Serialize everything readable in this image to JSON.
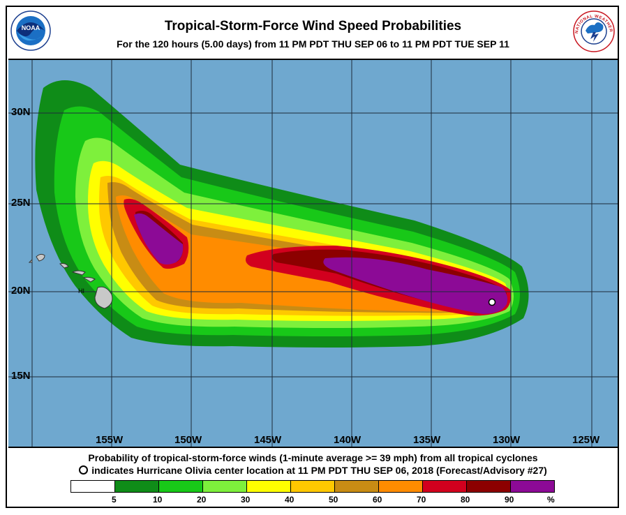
{
  "title": "Tropical-Storm-Force Wind Speed Probabilities",
  "subtitle": "For the 120 hours (5.00 days) from 11 PM PDT THU SEP 06 to 11 PM PDT TUE SEP 11",
  "logos": {
    "left": "NOAA",
    "right": "NATIONAL WEATHER SERVICE"
  },
  "map": {
    "ocean_color": "#6fa8cf",
    "lat_labels": [
      "30N",
      "25N",
      "20N",
      "15N"
    ],
    "lon_labels": [
      "155W",
      "150W",
      "145W",
      "140W",
      "135W",
      "130W",
      "125W"
    ],
    "place_label": "HI"
  },
  "caption": {
    "line1": "Probability of tropical-storm-force winds (1-minute average >= 39 mph) from all tropical cyclones",
    "line2": "indicates Hurricane Olivia center location at 11 PM PDT THU SEP 06, 2018 (Forecast/Advisory #27)"
  },
  "legend": {
    "colors": [
      "#ffffff",
      "#0f8c18",
      "#18c818",
      "#7ef03c",
      "#ffff00",
      "#ffc800",
      "#c88c14",
      "#ff8c00",
      "#d2001e",
      "#8c0000",
      "#8c0a96"
    ],
    "labels": [
      "5",
      "10",
      "20",
      "30",
      "40",
      "50",
      "60",
      "70",
      "80",
      "90",
      "%"
    ]
  }
}
